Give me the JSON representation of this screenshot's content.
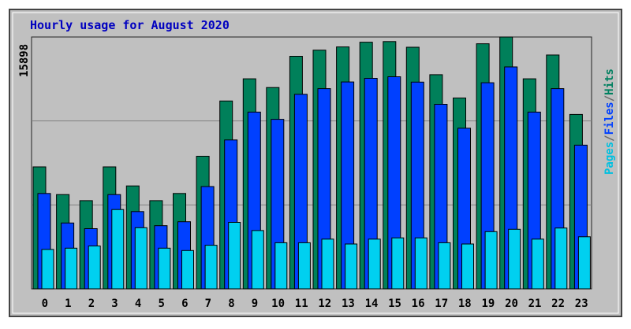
{
  "chart_data": {
    "type": "bar",
    "title": "Hourly usage for August 2020",
    "y_max_label": "15898",
    "ylim": [
      0,
      15898
    ],
    "grid": true,
    "legend_position": "right",
    "legend": [
      {
        "name": "Pages",
        "color": "#00c0e0"
      },
      {
        "name": "/",
        "color": "#666666"
      },
      {
        "name": "Files",
        "color": "#0040ff"
      },
      {
        "name": "/",
        "color": "#666666"
      },
      {
        "name": "Hits",
        "color": "#008060"
      }
    ],
    "categories": [
      "0",
      "1",
      "2",
      "3",
      "4",
      "5",
      "6",
      "7",
      "8",
      "9",
      "10",
      "11",
      "12",
      "13",
      "14",
      "15",
      "16",
      "17",
      "18",
      "19",
      "20",
      "21",
      "22",
      "23"
    ],
    "series": [
      {
        "name": "Hits",
        "color": "#00805a",
        "values": [
          7700,
          5950,
          5570,
          7700,
          6500,
          5570,
          6020,
          8370,
          11860,
          13260,
          12710,
          14680,
          15070,
          15270,
          15570,
          15610,
          15250,
          13520,
          12050,
          15470,
          15900,
          13260,
          14760,
          11010
        ]
      },
      {
        "name": "Files",
        "color": "#0040ff",
        "values": [
          6020,
          4160,
          3800,
          5950,
          4880,
          3990,
          4240,
          6460,
          9400,
          11160,
          10700,
          12280,
          12640,
          13060,
          13290,
          13390,
          13050,
          11650,
          10140,
          13010,
          14010,
          11160,
          12640,
          9070
        ]
      },
      {
        "name": "Pages",
        "color": "#00d0f0",
        "values": [
          2490,
          2570,
          2710,
          5010,
          3860,
          2570,
          2420,
          2750,
          4200,
          3680,
          2910,
          2910,
          3140,
          2830,
          3140,
          3220,
          3220,
          2910,
          2830,
          3610,
          3760,
          3140,
          3840,
          3290
        ]
      }
    ]
  }
}
